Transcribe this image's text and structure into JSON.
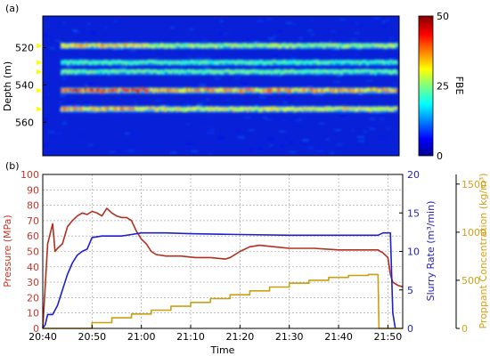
{
  "chart_data": [
    {
      "panel_label": "(a)",
      "type": "heatmap",
      "ylabel": "Depth (m)",
      "y_ticks": [
        "520",
        "540",
        "560"
      ],
      "colorbar_label": "FBE",
      "colorbar_ticks": [
        "0",
        "25",
        "50"
      ],
      "color_range": [
        0,
        50
      ],
      "colormap": "jet",
      "marker_color": "#ffff00",
      "bands": [
        {
          "depth": 519,
          "intensity": 0.7
        },
        {
          "depth": 528,
          "intensity": 0.3
        },
        {
          "depth": 533,
          "intensity": 0.35
        },
        {
          "depth": 543,
          "intensity": 1.0
        },
        {
          "depth": 553,
          "intensity": 0.75
        }
      ]
    },
    {
      "panel_label": "(b)",
      "type": "line",
      "xlabel": "Time",
      "x_ticks": [
        "20:40",
        "20:50",
        "21:00",
        "21:10",
        "21:20",
        "21:30",
        "21:40",
        "21:50"
      ],
      "xlim": [
        0,
        73
      ],
      "grid": true,
      "axes": {
        "left": {
          "label": "Pressure (MPa)",
          "ticks": [
            "0",
            "10",
            "20",
            "30",
            "40",
            "50",
            "60",
            "70",
            "80",
            "90",
            "100"
          ],
          "ylim": [
            0,
            100
          ],
          "color": "#c0392b"
        },
        "right1": {
          "label": "Slurry Rate (m³/min)",
          "ticks": [
            "0",
            "5",
            "10",
            "15",
            "20"
          ],
          "ylim": [
            0,
            20
          ],
          "color": "#1f1fbf"
        },
        "right2": {
          "label": "Proppant Concentration (kg/m³)",
          "ticks": [
            "0",
            "500",
            "1000",
            "1500"
          ],
          "ylim": [
            0,
            1600
          ],
          "color": "#d4a017"
        }
      },
      "series": [
        {
          "key": "pressure",
          "axis": "left",
          "color": "#b03020",
          "x": [
            0,
            1,
            2,
            2.5,
            3,
            4,
            5,
            6,
            7,
            8,
            9,
            10,
            11,
            12,
            13,
            14,
            15,
            16,
            17,
            18,
            19,
            20,
            21,
            22,
            23,
            25,
            28,
            31,
            34,
            37,
            38,
            40,
            42,
            44,
            47,
            50,
            55,
            60,
            65,
            68,
            69,
            70,
            70.5,
            71,
            72,
            73
          ],
          "y": [
            0,
            55,
            68,
            50,
            52,
            55,
            66,
            70,
            73,
            75,
            74,
            76,
            75,
            73,
            78,
            75,
            73,
            72,
            72,
            70,
            63,
            58,
            55,
            50,
            48,
            47,
            47,
            46,
            46,
            45,
            46,
            50,
            53,
            54,
            53,
            52,
            52,
            51,
            51,
            51,
            49,
            46,
            35,
            30,
            28,
            27
          ]
        },
        {
          "key": "slurry_rate",
          "axis": "right1",
          "color": "#1f1fcc",
          "x": [
            0,
            0.5,
            1,
            2,
            3,
            4,
            5,
            6,
            7,
            8,
            9,
            10,
            11,
            12,
            14,
            16,
            18,
            20,
            25,
            30,
            40,
            50,
            60,
            68,
            69,
            70,
            70.5,
            71,
            71.5
          ],
          "y": [
            0,
            0.5,
            1.8,
            1.8,
            3,
            5,
            7,
            8.5,
            9.5,
            10,
            10.3,
            11.8,
            11.9,
            12,
            12,
            12,
            12.2,
            12.4,
            12.4,
            12.3,
            12.2,
            12.1,
            12.1,
            12.1,
            12.4,
            12.4,
            12.4,
            2,
            0
          ]
        },
        {
          "key": "proppant",
          "axis": "right2",
          "color": "#c9a010",
          "x": [
            0,
            10,
            10,
            14,
            14,
            18,
            18,
            22,
            22,
            26,
            26,
            30,
            30,
            34,
            34,
            38,
            38,
            42,
            42,
            46,
            46,
            50,
            50,
            54,
            54,
            58,
            58,
            62,
            62,
            66,
            66,
            68,
            68,
            68.2,
            73
          ],
          "y": [
            0,
            0,
            60,
            60,
            110,
            110,
            150,
            150,
            190,
            190,
            230,
            230,
            270,
            270,
            310,
            310,
            350,
            350,
            390,
            390,
            430,
            430,
            470,
            470,
            500,
            500,
            530,
            530,
            550,
            550,
            560,
            560,
            560,
            0,
            0
          ]
        }
      ]
    }
  ]
}
